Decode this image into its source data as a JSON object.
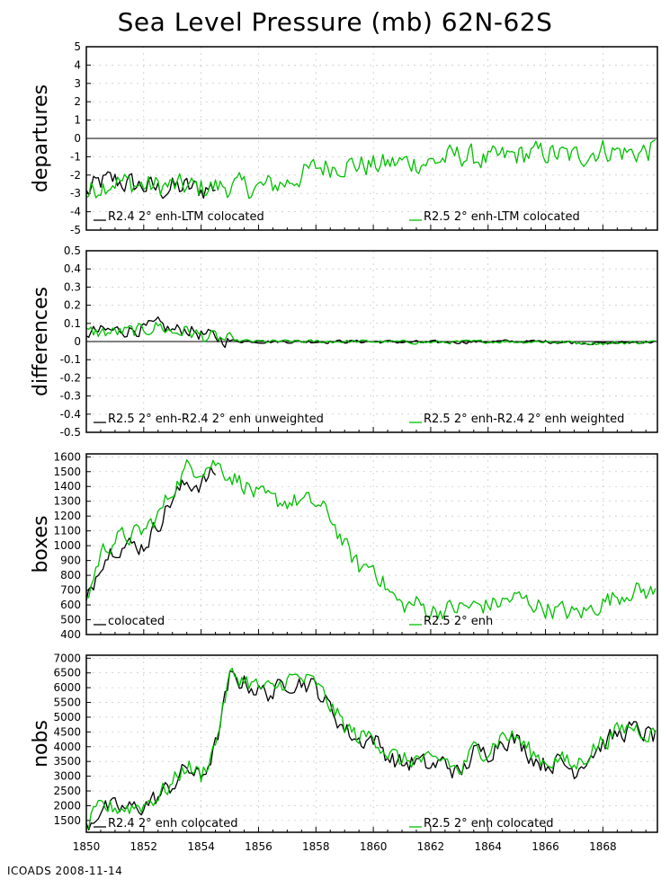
{
  "title": "Sea Level Pressure (mb) 62N-62S",
  "footer": "ICOADS 2008-11-14",
  "colors": {
    "black_series": "#000000",
    "green_series": "#00c000",
    "zero_line": "#000000",
    "grid": "#bbbbbb"
  },
  "x_axis": {
    "min": 1850,
    "max": 1869.9,
    "tick_labels": [
      "1850",
      "1852",
      "1854",
      "1856",
      "1858",
      "1860",
      "1862",
      "1864",
      "1866",
      "1868"
    ]
  },
  "chart_data": [
    {
      "type": "line",
      "ylabel": "departures",
      "ylim": [
        -5,
        5
      ],
      "y_ticks": [
        5,
        4,
        3,
        2,
        1,
        0,
        -1,
        -2,
        -3,
        -4,
        -5
      ],
      "zero_line": true,
      "grid": true,
      "series": [
        {
          "name": "R2.4 2° enh-LTM colocated",
          "color": "black",
          "x_range": [
            1850,
            1854.5
          ],
          "anchors": [
            [
              1850,
              -3.0
            ],
            [
              1850.5,
              -2.4
            ],
            [
              1851,
              -2.3
            ],
            [
              1851.5,
              -2.5
            ],
            [
              1852,
              -2.6
            ],
            [
              1852.5,
              -2.8
            ],
            [
              1853,
              -2.7
            ],
            [
              1853.5,
              -2.7
            ],
            [
              1854,
              -2.8
            ],
            [
              1854.5,
              -2.6
            ]
          ]
        },
        {
          "name": "R2.5 2° enh-LTM colocated",
          "color": "green",
          "x_range": [
            1850,
            1869.9
          ],
          "anchors": [
            [
              1850,
              -3.1
            ],
            [
              1850.5,
              -2.5
            ],
            [
              1851,
              -2.3
            ],
            [
              1852,
              -2.6
            ],
            [
              1853,
              -2.6
            ],
            [
              1854,
              -2.7
            ],
            [
              1855,
              -2.6
            ],
            [
              1856,
              -2.7
            ],
            [
              1857,
              -2.4
            ],
            [
              1858,
              -1.6
            ],
            [
              1859,
              -1.4
            ],
            [
              1860,
              -1.5
            ],
            [
              1861,
              -1.3
            ],
            [
              1862,
              -1.3
            ],
            [
              1863,
              -0.9
            ],
            [
              1864,
              -1.2
            ],
            [
              1865,
              -0.9
            ],
            [
              1866,
              -0.8
            ],
            [
              1867,
              -1.0
            ],
            [
              1868,
              -0.6
            ],
            [
              1869,
              -0.8
            ],
            [
              1869.9,
              -0.6
            ]
          ]
        }
      ]
    },
    {
      "type": "line",
      "ylabel": "differences",
      "ylim": [
        -0.5,
        0.5
      ],
      "y_ticks": [
        0.5,
        0.4,
        0.3,
        0.2,
        0.1,
        0,
        -0.1,
        -0.2,
        -0.3,
        -0.4,
        -0.5
      ],
      "zero_line": true,
      "grid": true,
      "series": [
        {
          "name": "R2.5 2° enh-R2.4 2° enh unweighted",
          "color": "black",
          "x_range": [
            1850,
            1869.9
          ],
          "anchors": [
            [
              1850,
              0.05
            ],
            [
              1851,
              0.06
            ],
            [
              1852,
              0.07
            ],
            [
              1852.5,
              0.09
            ],
            [
              1853,
              0.06
            ],
            [
              1853.5,
              0.07
            ],
            [
              1854,
              0.04
            ],
            [
              1854.5,
              0.02
            ],
            [
              1855,
              0.005
            ],
            [
              1856,
              0.0
            ],
            [
              1858,
              0.0
            ],
            [
              1860,
              0.0
            ],
            [
              1862,
              -0.005
            ],
            [
              1864,
              0.0
            ],
            [
              1866,
              0.0
            ],
            [
              1868,
              -0.01
            ],
            [
              1869.9,
              0.0
            ]
          ]
        },
        {
          "name": "R2.5 2° enh-R2.4 2° enh weighted",
          "color": "green",
          "x_range": [
            1850,
            1869.9
          ],
          "anchors": [
            [
              1850,
              0.05
            ],
            [
              1851,
              0.05
            ],
            [
              1852,
              0.06
            ],
            [
              1852.5,
              0.09
            ],
            [
              1853,
              0.05
            ],
            [
              1853.5,
              0.06
            ],
            [
              1854,
              0.03
            ],
            [
              1854.5,
              0.02
            ],
            [
              1855,
              0.005
            ],
            [
              1856,
              0.0
            ],
            [
              1858,
              0.0
            ],
            [
              1860,
              0.0
            ],
            [
              1862,
              -0.005
            ],
            [
              1864,
              0.0
            ],
            [
              1866,
              0.0
            ],
            [
              1868,
              -0.01
            ],
            [
              1869.9,
              0.0
            ]
          ]
        }
      ]
    },
    {
      "type": "line",
      "ylabel": "boxes",
      "ylim": [
        400,
        1620
      ],
      "y_ticks": [
        1600,
        1500,
        1400,
        1300,
        1200,
        1100,
        1000,
        900,
        800,
        700,
        600,
        500,
        400
      ],
      "zero_line": false,
      "grid": true,
      "series": [
        {
          "name": "colocated",
          "color": "black",
          "x_range": [
            1850,
            1854.5
          ],
          "anchors": [
            [
              1850,
              600
            ],
            [
              1850.5,
              900
            ],
            [
              1851,
              1000
            ],
            [
              1851.5,
              1000
            ],
            [
              1852,
              1000
            ],
            [
              1852.5,
              1150
            ],
            [
              1853,
              1320
            ],
            [
              1853.5,
              1420
            ],
            [
              1854,
              1420
            ],
            [
              1854.5,
              1500
            ]
          ]
        },
        {
          "name": "R2.5 2° enh",
          "color": "green",
          "x_range": [
            1850,
            1869.9
          ],
          "anchors": [
            [
              1850,
              620
            ],
            [
              1850.5,
              950
            ],
            [
              1851,
              1050
            ],
            [
              1851.5,
              1060
            ],
            [
              1852,
              1100
            ],
            [
              1852.5,
              1200
            ],
            [
              1853,
              1380
            ],
            [
              1853.5,
              1520
            ],
            [
              1854,
              1530
            ],
            [
              1854.5,
              1560
            ],
            [
              1855,
              1480
            ],
            [
              1855.5,
              1420
            ],
            [
              1856,
              1330
            ],
            [
              1856.5,
              1300
            ],
            [
              1857,
              1300
            ],
            [
              1857.5,
              1300
            ],
            [
              1858,
              1280
            ],
            [
              1858.5,
              1200
            ],
            [
              1859,
              1000
            ],
            [
              1859.5,
              850
            ],
            [
              1860,
              870
            ],
            [
              1860.5,
              700
            ],
            [
              1861,
              590
            ],
            [
              1861.5,
              610
            ],
            [
              1862,
              560
            ],
            [
              1863,
              580
            ],
            [
              1864,
              600
            ],
            [
              1864.5,
              620
            ],
            [
              1865,
              650
            ],
            [
              1866,
              580
            ],
            [
              1867,
              540
            ],
            [
              1867.5,
              560
            ],
            [
              1868,
              620
            ],
            [
              1868.5,
              660
            ],
            [
              1869,
              700
            ],
            [
              1869.9,
              680
            ]
          ]
        }
      ]
    },
    {
      "type": "line",
      "ylabel": "nobs",
      "ylim": [
        1100,
        7100
      ],
      "y_ticks": [
        7000,
        6500,
        6000,
        5500,
        5000,
        4500,
        4000,
        3500,
        3000,
        2500,
        2000,
        1500
      ],
      "zero_line": false,
      "grid": true,
      "series": [
        {
          "name": "R2.4 2° enh colocated",
          "color": "black",
          "x_range": [
            1850,
            1869.9
          ],
          "anchors": [
            [
              1850,
              1300
            ],
            [
              1850.5,
              1900
            ],
            [
              1851,
              1900
            ],
            [
              1851.5,
              1900
            ],
            [
              1852,
              2000
            ],
            [
              1852.5,
              2300
            ],
            [
              1853,
              2700
            ],
            [
              1853.5,
              3300
            ],
            [
              1854,
              2900
            ],
            [
              1854.5,
              4000
            ],
            [
              1855,
              6300
            ],
            [
              1855.5,
              6200
            ],
            [
              1856,
              5900
            ],
            [
              1856.5,
              5800
            ],
            [
              1857,
              6200
            ],
            [
              1857.5,
              6200
            ],
            [
              1858,
              6000
            ],
            [
              1858.5,
              5300
            ],
            [
              1859,
              4600
            ],
            [
              1859.5,
              4200
            ],
            [
              1860,
              4300
            ],
            [
              1860.5,
              3700
            ],
            [
              1861,
              3400
            ],
            [
              1861.5,
              3500
            ],
            [
              1862,
              3300
            ],
            [
              1862.5,
              3500
            ],
            [
              1863,
              3000
            ],
            [
              1863.5,
              3800
            ],
            [
              1864,
              3800
            ],
            [
              1864.5,
              4300
            ],
            [
              1865,
              4200
            ],
            [
              1865.5,
              3700
            ],
            [
              1866,
              3400
            ],
            [
              1866.5,
              3500
            ],
            [
              1867,
              3200
            ],
            [
              1867.5,
              3700
            ],
            [
              1868,
              4100
            ],
            [
              1868.5,
              4400
            ],
            [
              1869,
              4600
            ],
            [
              1869.9,
              4300
            ]
          ]
        },
        {
          "name": "R2.5 2° enh colocated",
          "color": "green",
          "x_range": [
            1850,
            1869.9
          ],
          "anchors": [
            [
              1850,
              1300
            ],
            [
              1850.5,
              1900
            ],
            [
              1851,
              1950
            ],
            [
              1851.5,
              1950
            ],
            [
              1852,
              2050
            ],
            [
              1852.5,
              2350
            ],
            [
              1853,
              2750
            ],
            [
              1853.5,
              3400
            ],
            [
              1854,
              3000
            ],
            [
              1854.5,
              4100
            ],
            [
              1855,
              6400
            ],
            [
              1855.5,
              6300
            ],
            [
              1856,
              6000
            ],
            [
              1856.5,
              5900
            ],
            [
              1857,
              6300
            ],
            [
              1857.5,
              6300
            ],
            [
              1858,
              6100
            ],
            [
              1858.5,
              5400
            ],
            [
              1859,
              4700
            ],
            [
              1859.5,
              4300
            ],
            [
              1860,
              4400
            ],
            [
              1860.5,
              3800
            ],
            [
              1861,
              3500
            ],
            [
              1861.5,
              3600
            ],
            [
              1862,
              3400
            ],
            [
              1862.5,
              3600
            ],
            [
              1863,
              3100
            ],
            [
              1863.5,
              3900
            ],
            [
              1864,
              3900
            ],
            [
              1864.5,
              4400
            ],
            [
              1865,
              4300
            ],
            [
              1865.5,
              3800
            ],
            [
              1866,
              3500
            ],
            [
              1866.5,
              3600
            ],
            [
              1867,
              3300
            ],
            [
              1867.5,
              3800
            ],
            [
              1868,
              4200
            ],
            [
              1868.5,
              4500
            ],
            [
              1869,
              4700
            ],
            [
              1869.9,
              4400
            ]
          ]
        }
      ]
    }
  ]
}
